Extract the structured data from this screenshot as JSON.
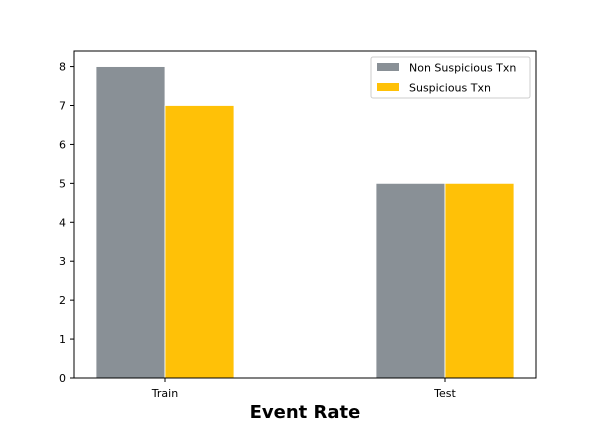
{
  "chart_data": {
    "type": "bar",
    "categories": [
      "Train",
      "Test"
    ],
    "series": [
      {
        "name": "Non Suspicious Txn",
        "values": [
          8,
          5
        ],
        "color": "#899096"
      },
      {
        "name": "Suspicious Txn",
        "values": [
          7,
          5
        ],
        "color": "#FFC107"
      }
    ],
    "title": "",
    "xlabel": "Event Rate",
    "ylabel": "",
    "ylim": [
      0,
      8.4
    ],
    "yticks": [
      0,
      1,
      2,
      3,
      4,
      5,
      6,
      7,
      8
    ],
    "grid": false,
    "legend_position": "top-right"
  }
}
